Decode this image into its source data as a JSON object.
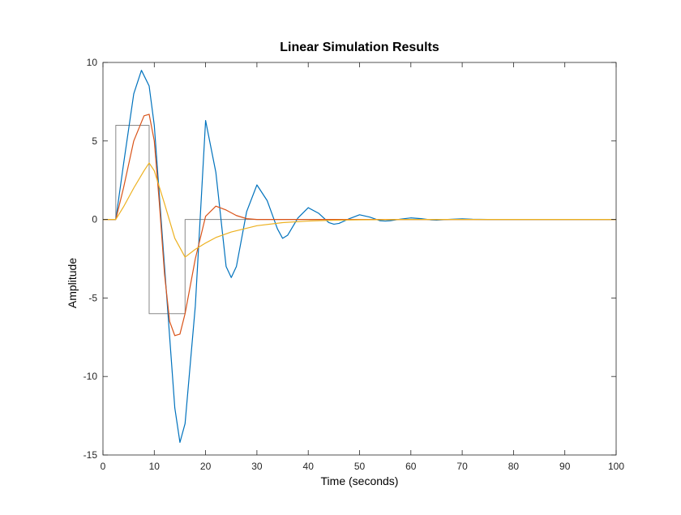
{
  "chart_data": {
    "type": "line",
    "title": "Linear Simulation Results",
    "xlabel": "Time (seconds)",
    "ylabel": "Amplitude",
    "xlim": [
      0,
      100
    ],
    "ylim": [
      -15,
      10
    ],
    "xticks": [
      "0",
      "10",
      "20",
      "30",
      "40",
      "50",
      "60",
      "70",
      "80",
      "90",
      "100"
    ],
    "yticks": [
      "10",
      "5",
      "0",
      "-5",
      "-10",
      "-15"
    ],
    "xtick_values": [
      0,
      10,
      20,
      30,
      40,
      50,
      60,
      70,
      80,
      90,
      100
    ],
    "ytick_values": [
      10,
      5,
      0,
      -5,
      -10,
      -15
    ],
    "grid": false,
    "legend": "none",
    "series": [
      {
        "color": "#888888",
        "style": "step-input",
        "x": [
          0,
          2.5,
          2.5,
          9,
          9,
          16,
          16,
          100
        ],
        "y": [
          0,
          0,
          6,
          6,
          -6,
          -6,
          0,
          0
        ]
      },
      {
        "color": "#0072BD",
        "x": [
          0,
          2.5,
          4,
          6,
          7.5,
          9,
          10,
          12,
          14,
          15,
          16,
          18,
          20,
          22,
          24,
          25,
          26,
          28,
          30,
          32,
          34,
          35,
          36,
          38,
          40,
          42,
          44,
          45,
          46,
          48,
          50,
          52,
          54,
          55,
          56,
          58,
          60,
          62,
          64,
          65,
          66,
          68,
          70,
          72,
          75,
          80,
          90,
          100
        ],
        "y": [
          0,
          0,
          3.5,
          8,
          9.5,
          8.5,
          6,
          -3,
          -12,
          -14.2,
          -13,
          -5.5,
          6.3,
          3,
          -3,
          -3.7,
          -3,
          0.5,
          2.2,
          1.2,
          -0.6,
          -1.2,
          -1,
          0.1,
          0.75,
          0.4,
          -0.2,
          -0.3,
          -0.25,
          0.05,
          0.3,
          0.15,
          -0.08,
          -0.1,
          -0.08,
          0.02,
          0.1,
          0.05,
          -0.03,
          -0.04,
          -0.02,
          0.01,
          0.04,
          0.01,
          0,
          0,
          0,
          0
        ]
      },
      {
        "color": "#D95319",
        "x": [
          0,
          2.5,
          4,
          6,
          8,
          9,
          10,
          11,
          12,
          13,
          14,
          15,
          16,
          18,
          20,
          22,
          24,
          26,
          28,
          30,
          35,
          40,
          50,
          60,
          80,
          100
        ],
        "y": [
          0,
          0,
          2,
          5,
          6.6,
          6.7,
          5,
          1,
          -3.5,
          -6.5,
          -7.4,
          -7.3,
          -6,
          -2.5,
          0.2,
          0.85,
          0.6,
          0.25,
          0.05,
          0,
          0,
          0,
          0,
          0,
          0,
          0
        ]
      },
      {
        "color": "#EDB120",
        "x": [
          0,
          2.5,
          4,
          6,
          8,
          9,
          10,
          12,
          14,
          16,
          18,
          20,
          22,
          25,
          30,
          35,
          40,
          45,
          50,
          60,
          70,
          80,
          90,
          100
        ],
        "y": [
          0,
          0,
          0.8,
          2,
          3.1,
          3.6,
          3.1,
          1,
          -1.2,
          -2.4,
          -1.9,
          -1.5,
          -1.15,
          -0.8,
          -0.4,
          -0.2,
          -0.1,
          -0.05,
          -0.02,
          0,
          0,
          0,
          0,
          0
        ]
      }
    ]
  }
}
